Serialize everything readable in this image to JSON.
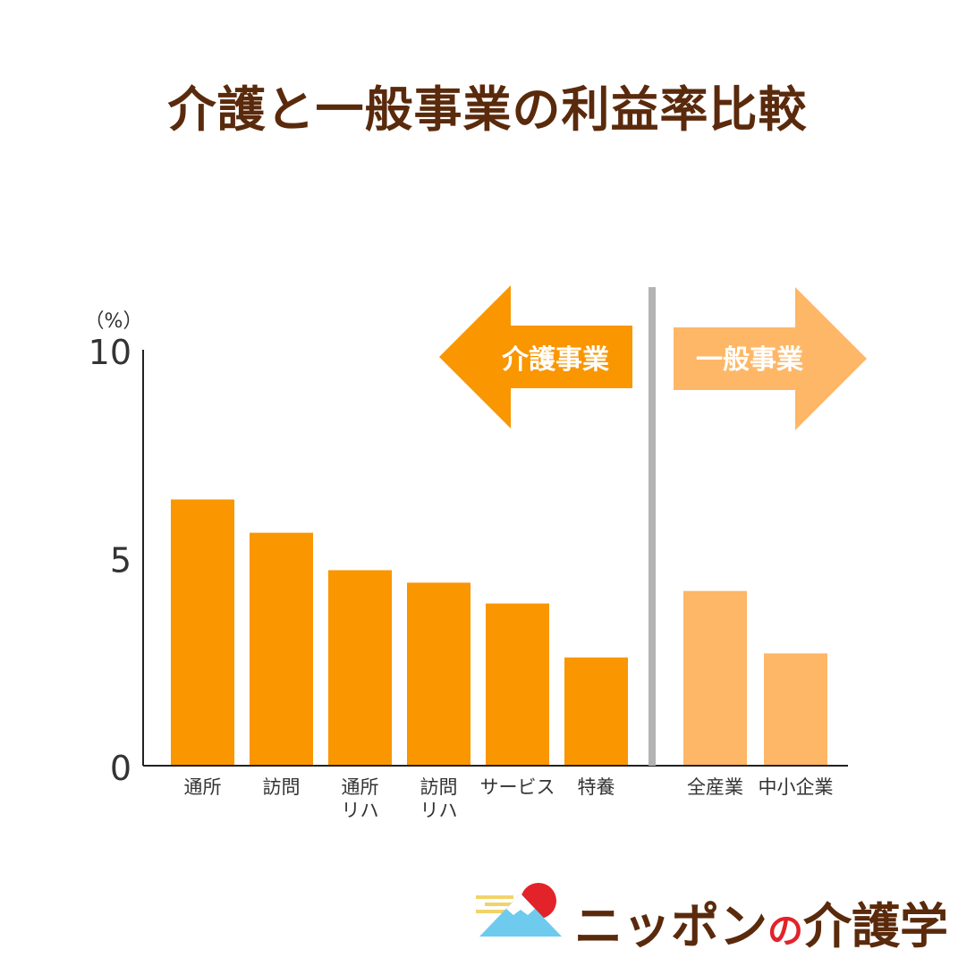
{
  "title": "介護と一般事業の利益率比較",
  "chart_data": {
    "type": "bar",
    "unit_label": "（%）",
    "ylim": [
      0,
      10
    ],
    "yticks": [
      "0",
      "5",
      "10"
    ],
    "groups": [
      {
        "name": "介護事業",
        "color": "#f99600",
        "categories": [
          "通所",
          "訪問",
          "通所\nリハ",
          "訪問\nリハ",
          "サービス",
          "特養"
        ],
        "values": [
          6.4,
          5.6,
          4.7,
          4.4,
          3.9,
          2.6
        ]
      },
      {
        "name": "一般事業",
        "color": "#feb766",
        "categories": [
          "全産業",
          "中小企業"
        ],
        "values": [
          4.2,
          2.7
        ]
      }
    ]
  },
  "logo": {
    "part1": "ニッポン",
    "part2": "の",
    "part3": "介護学"
  }
}
